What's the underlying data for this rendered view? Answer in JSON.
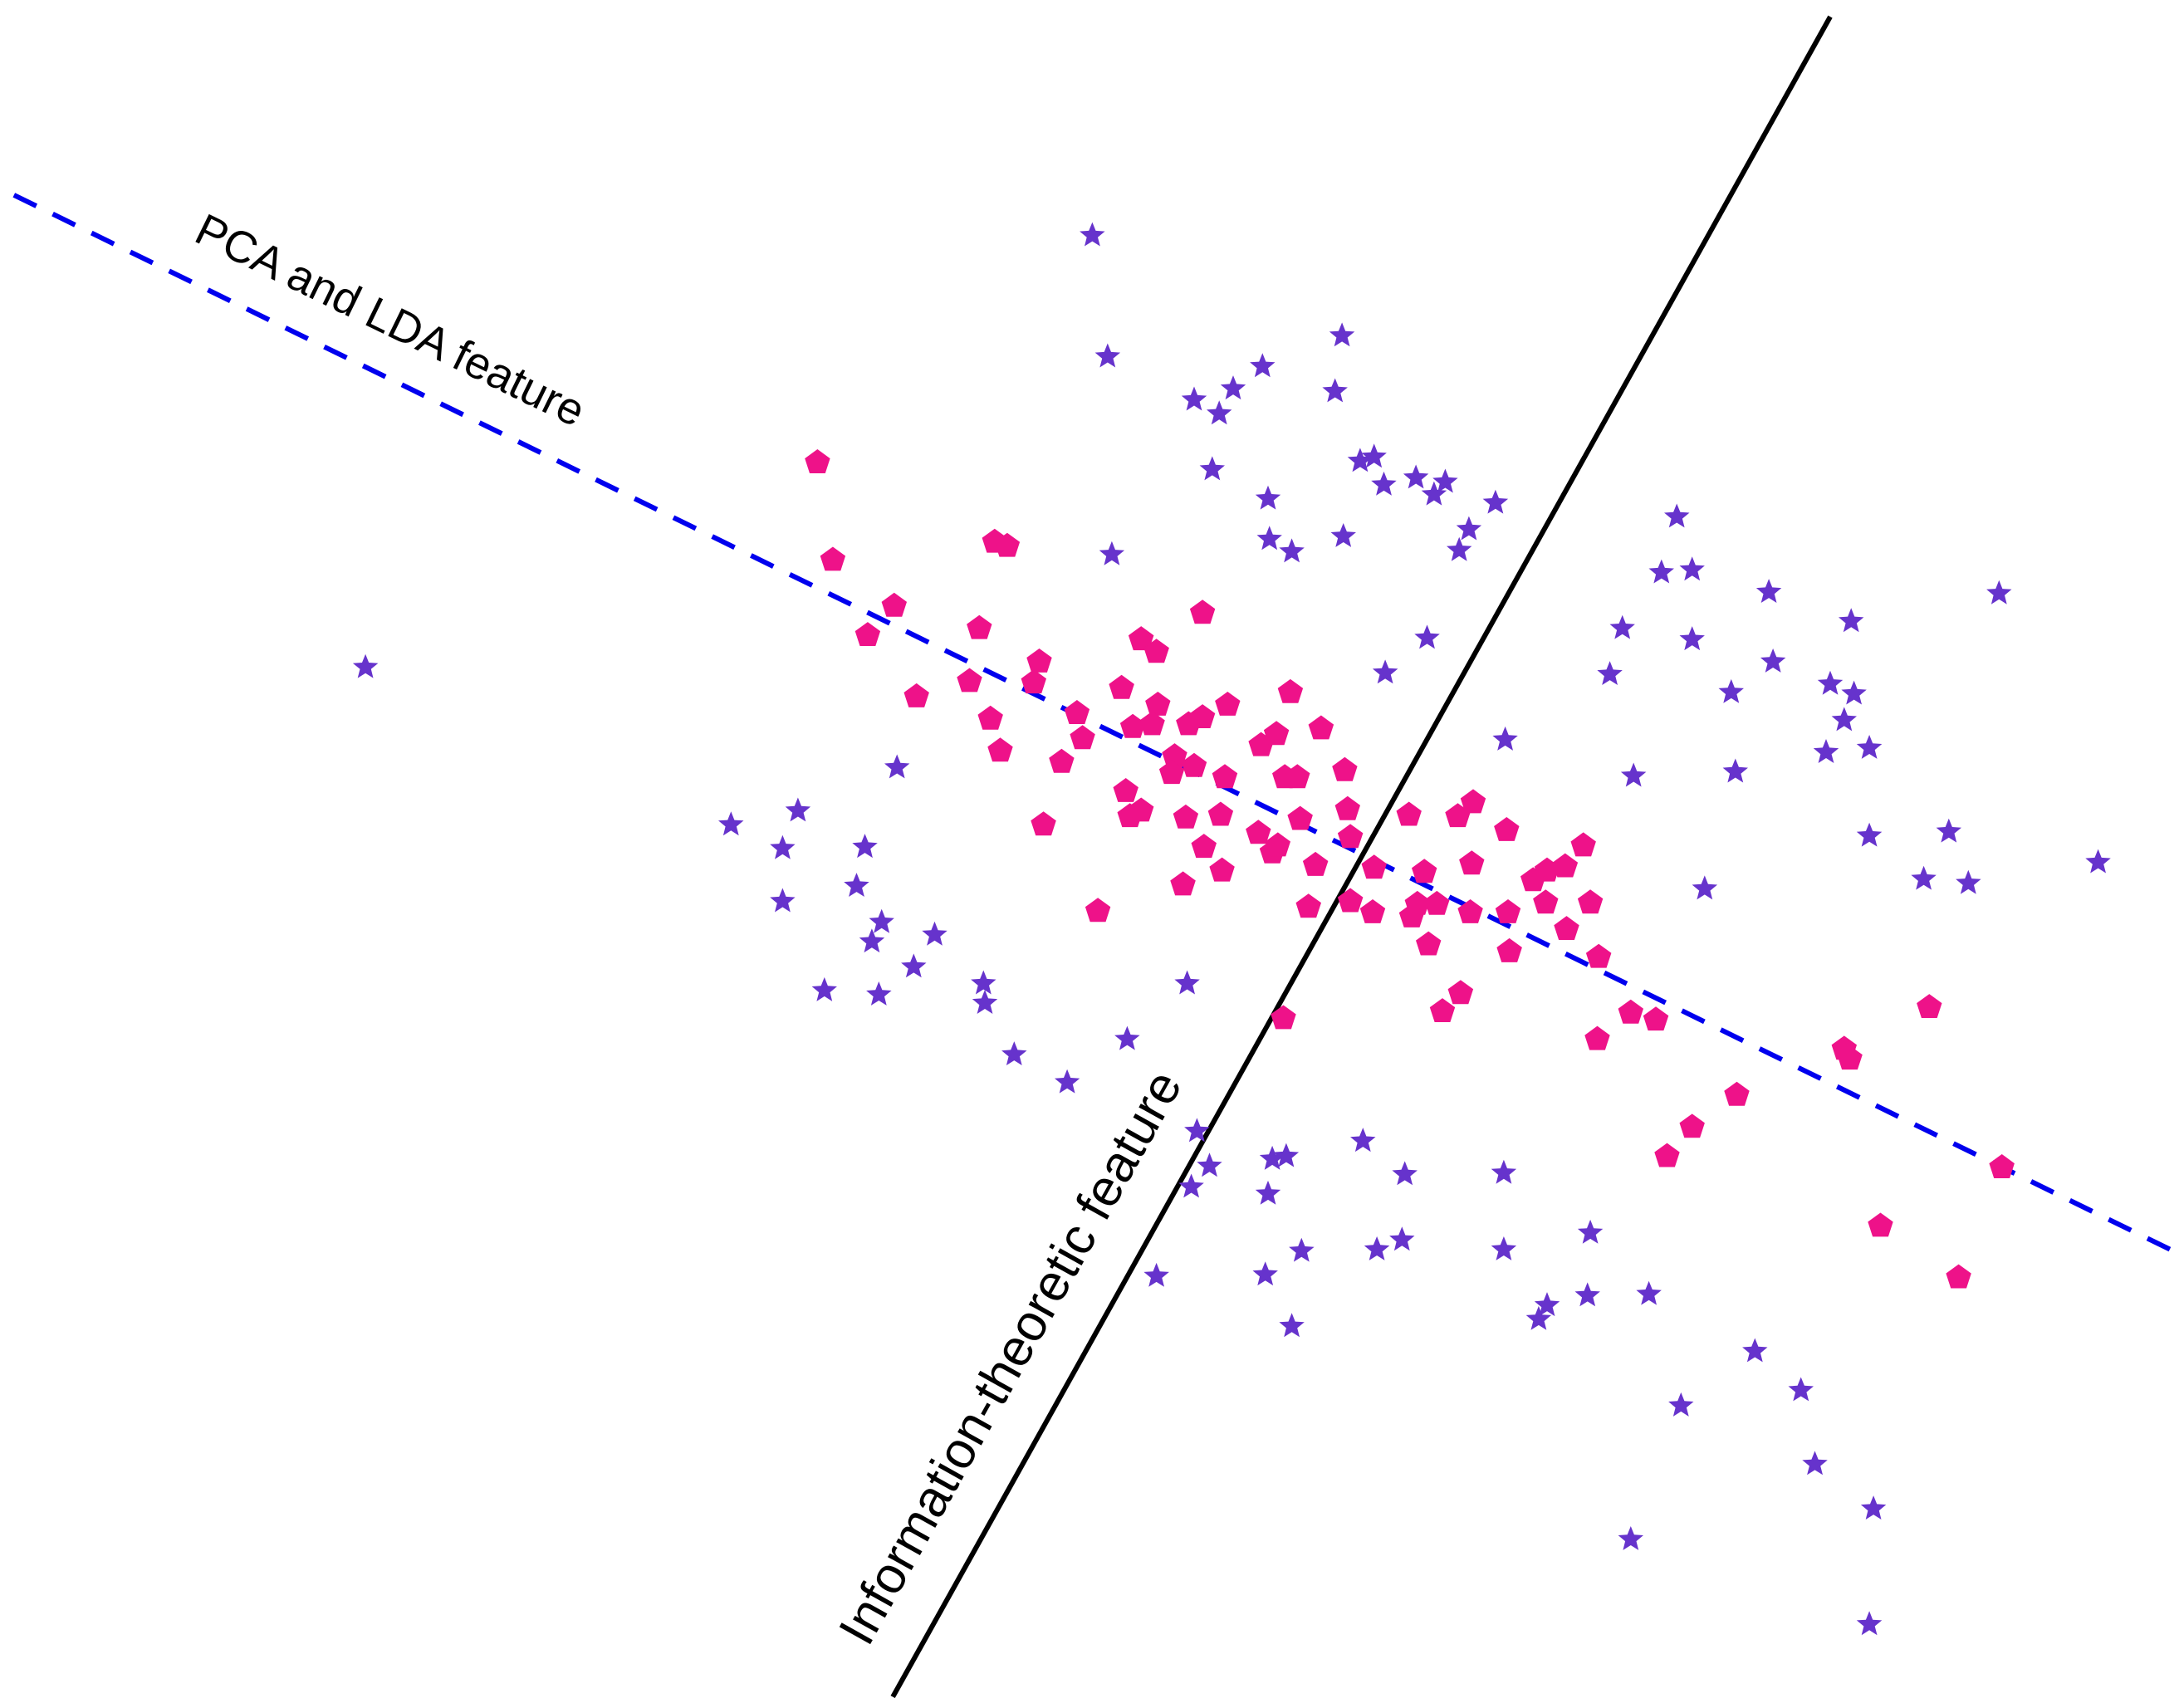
{
  "chart_data": {
    "type": "scatter",
    "xlim": [
      0,
      1562
    ],
    "ylim": [
      1226,
      0
    ],
    "lines": [
      {
        "label": "PCA and LDA feature",
        "color": "#0000ee",
        "dashed": true,
        "x": [
          10,
          1558
        ],
        "y": [
          140,
          898
        ]
      },
      {
        "label": "Information-theoretic feature",
        "color": "#000000",
        "dashed": false,
        "x": [
          640,
          1312
        ],
        "y": [
          1218,
          12
        ]
      }
    ],
    "series": [
      {
        "marker": "pentagon",
        "color": "#ee1289",
        "x": [
          586,
          597,
          641,
          622,
          713,
          722,
          702,
          657,
          695,
          710,
          717,
          745,
          741,
          772,
          776,
          761,
          748,
          787,
          804,
          818,
          829,
          830,
          826,
          812,
          807,
          810,
          818,
          842,
          840,
          856,
          852,
          862,
          862,
          880,
          878,
          875,
          850,
          863,
          876,
          848,
          902,
          912,
          916,
          904,
          915,
          925,
          947,
          921,
          930,
          964,
          966,
          932,
          943,
          968,
          938,
          968,
          984,
          985,
          1010,
          1045,
          1056,
          1080,
          1021,
          1055,
          1016,
          1030,
          1012,
          1024,
          1054,
          1081,
          1082,
          1099,
          1109,
          1122,
          1135,
          1108,
          1123,
          1140,
          1146,
          1047,
          1034,
          920,
          1145,
          1169,
          1187,
          1245,
          1213,
          1195,
          1322,
          1326,
          1383,
          1435,
          1348,
          1404
        ],
        "y": [
          332,
          402,
          435,
          456,
          389,
          392,
          451,
          500,
          489,
          516,
          539,
          475,
          490,
          512,
          530,
          547,
          592,
          654,
          494,
          459,
          468,
          506,
          520,
          522,
          568,
          586,
          582,
          543,
          555,
          550,
          520,
          515,
          440,
          506,
          558,
          585,
          587,
          608,
          625,
          635,
          598,
          612,
          607,
          535,
          527,
          497,
          523,
          558,
          558,
          553,
          581,
          588,
          621,
          601,
          651,
          647,
          655,
          623,
          585,
          586,
          576,
          596,
          626,
          620,
          649,
          649,
          658,
          678,
          655,
          655,
          683,
          632,
          625,
          622,
          607,
          648,
          667,
          648,
          687,
          713,
          726,
          731,
          746,
          727,
          732,
          786,
          809,
          830,
          753,
          760,
          723,
          838,
          880,
          917
        ]
      },
      {
        "marker": "star",
        "color": "#6633cc",
        "x": [
          783,
          794,
          962,
          905,
          884,
          856,
          874,
          957,
          869,
          975,
          985,
          992,
          1015,
          1036,
          1028,
          1072,
          909,
          1053,
          1046,
          963,
          910,
          926,
          797,
          1023,
          993,
          262,
          643,
          1079,
          572,
          524,
          561,
          620,
          614,
          561,
          632,
          625,
          670,
          655,
          591,
          630,
          705,
          706,
          851,
          727,
          808,
          765,
          858,
          867,
          854,
          912,
          922,
          909,
          977,
          1007,
          1078,
          829,
          907,
          933,
          987,
          1005,
          1078,
          1140,
          926,
          1109,
          1103,
          1138,
          1182,
          1258,
          1291,
          1205,
          1301,
          1343,
          1169,
          1340,
          1202,
          1191,
          1213,
          1268,
          1327,
          1433,
          1163,
          1213,
          1154,
          1271,
          1241,
          1312,
          1329,
          1322,
          1309,
          1340,
          1244,
          1171,
          1340,
          1397,
          1222,
          1379,
          1411,
          1504
        ],
        "y": [
          169,
          256,
          241,
          263,
          279,
          287,
          297,
          281,
          337,
          331,
          328,
          348,
          343,
          346,
          355,
          361,
          358,
          380,
          395,
          385,
          387,
          396,
          398,
          458,
          483,
          479,
          551,
          531,
          582,
          592,
          609,
          608,
          636,
          647,
          662,
          676,
          671,
          694,
          711,
          714,
          706,
          720,
          706,
          757,
          746,
          777,
          812,
          837,
          852,
          832,
          830,
          857,
          819,
          843,
          842,
          916,
          915,
          898,
          897,
          890,
          897,
          885,
          952,
          937,
          947,
          930,
          929,
          970,
          998,
          1009,
          1051,
          1083,
          1105,
          1166,
          371,
          411,
          409,
          425,
          446,
          426,
          451,
          459,
          484,
          475,
          497,
          491,
          498,
          517,
          540,
          537,
          554,
          557,
          600,
          597,
          638,
          631,
          634,
          619
        ]
      }
    ]
  }
}
